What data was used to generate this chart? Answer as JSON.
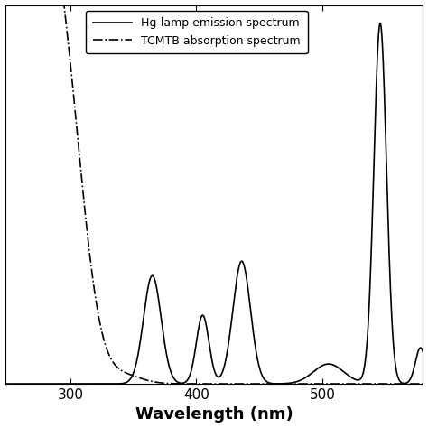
{
  "xlabel": "Wavelength (nm)",
  "xlabel_fontsize": 13,
  "xlabel_fontweight": "bold",
  "xlim": [
    248,
    580
  ],
  "ylim": [
    0,
    1.05
  ],
  "legend_entries": [
    "Hg-lamp emission spectrum",
    "TCMTB absorption spectrum"
  ],
  "legend_loc": "upper left",
  "background_color": "#ffffff",
  "line_color": "#000000"
}
